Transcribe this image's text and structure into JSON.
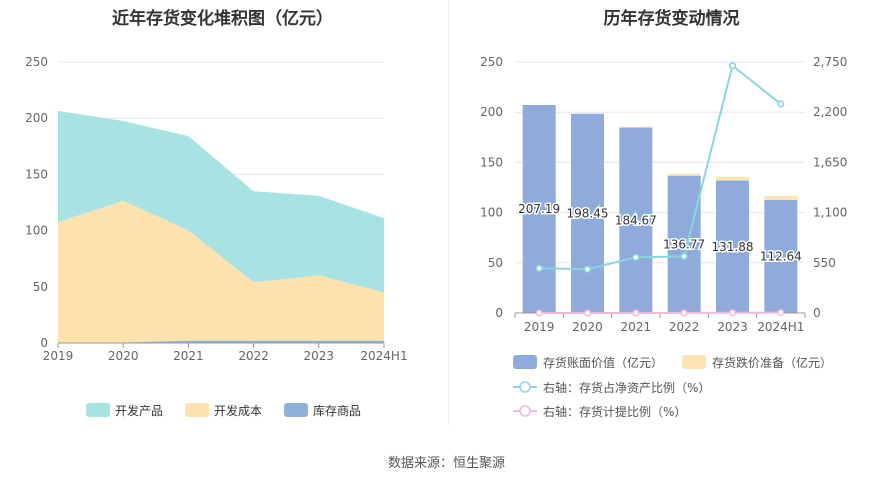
{
  "charts": {
    "left_title": "近年存货变化堆积图（亿元）",
    "right_title": "历年存货变动情况"
  },
  "source": "数据来源：恒生聚源",
  "colors": {
    "kaifa_chanpin": "#a8e3e3",
    "kaifa_chengben": "#fde2ad",
    "kucun_shangpin": "#8eb1db",
    "book_value": "#8eabdb",
    "impairment": "#fde4b4",
    "ratio_line": "#8ad6df",
    "provision_line": "#f0b8dc",
    "axis": "#999999",
    "grid": "#e6e6ee",
    "text": "#666666"
  },
  "chart_data": [
    {
      "type": "area",
      "stacked": true,
      "title": "近年存货变化堆积图（亿元）",
      "categories": [
        "2019",
        "2020",
        "2021",
        "2022",
        "2023",
        "2024H1"
      ],
      "ylim": [
        0,
        250
      ],
      "yticks": [
        "0",
        "50",
        "100",
        "150",
        "200",
        "250"
      ],
      "grid": true,
      "legend_position": "bottom",
      "series": [
        {
          "name": "库存商品",
          "values": [
            0.5,
            0.5,
            2,
            2,
            2,
            2
          ]
        },
        {
          "name": "开发成本",
          "values": [
            107,
            126,
            98,
            52,
            58,
            43
          ]
        },
        {
          "name": "开发产品",
          "values": [
            99,
            71,
            84,
            81,
            71,
            66
          ]
        }
      ],
      "legend": [
        "开发产品",
        "开发成本",
        "库存商品"
      ]
    },
    {
      "type": "bar",
      "stacked": true,
      "title": "历年存货变动情况",
      "categories": [
        "2019",
        "2020",
        "2021",
        "2022",
        "2023",
        "2024H1"
      ],
      "ylim": [
        0,
        250
      ],
      "yticks": [
        "0",
        "50",
        "100",
        "150",
        "200",
        "250"
      ],
      "y2lim": [
        0,
        2750
      ],
      "y2ticks": [
        "0",
        "550",
        "1,100",
        "1,650",
        "2,200",
        "2,750"
      ],
      "grid": true,
      "legend_position": "bottom",
      "series": [
        {
          "name": "存货账面价值（亿元）",
          "type": "bar",
          "values": [
            207.19,
            198.45,
            184.67,
            136.77,
            131.88,
            112.64
          ],
          "labels": [
            "207.19",
            "198.45",
            "184.67",
            "136.77",
            "131.88",
            "112.64"
          ]
        },
        {
          "name": "存货跌价准备（亿元）",
          "type": "bar",
          "values": [
            0,
            0,
            1,
            2,
            4,
            4
          ]
        },
        {
          "name": "右轴：存货占净资产比例（%）",
          "type": "line",
          "axis": "right",
          "values": [
            490,
            480,
            610,
            620,
            2710,
            2290
          ]
        },
        {
          "name": "右轴：存货计提比例（%）",
          "type": "line",
          "axis": "right",
          "values": [
            0,
            0,
            0.5,
            1.5,
            3,
            3.5
          ]
        }
      ]
    }
  ]
}
